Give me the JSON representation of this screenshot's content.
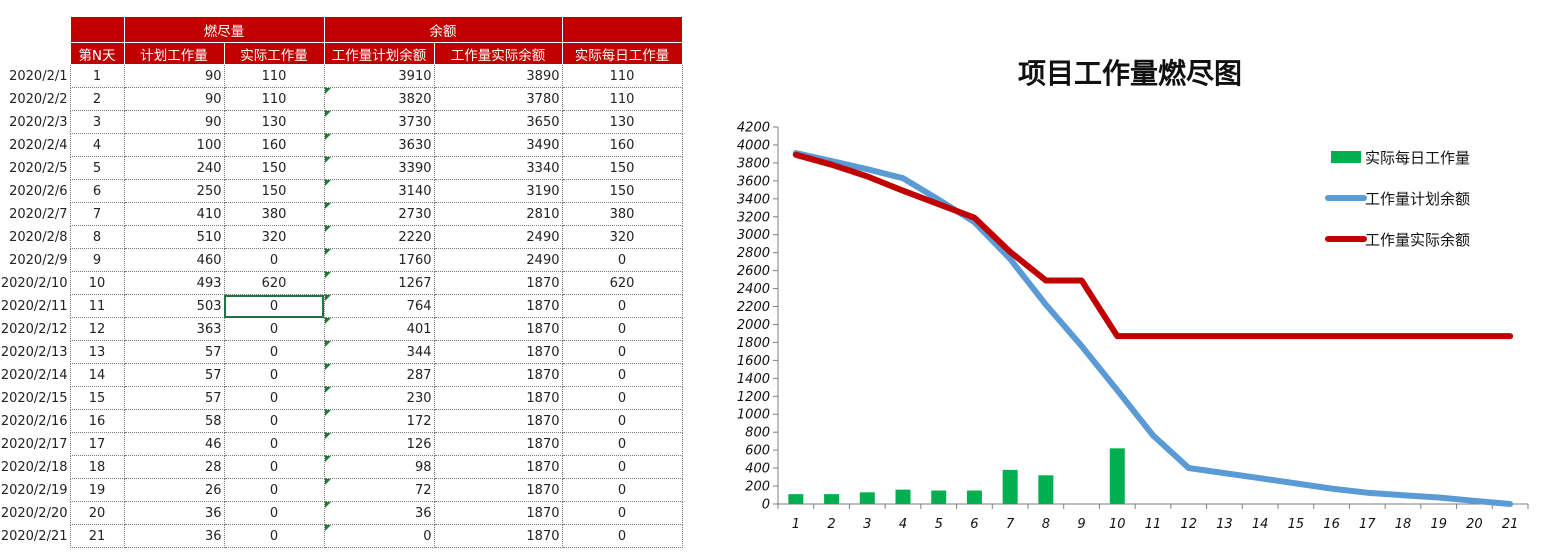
{
  "sheet": {
    "group_headers": {
      "burn": "燃尽量",
      "remain": "余额"
    },
    "columns": [
      "第N天",
      "计划工作量",
      "实际工作量",
      "工作量计划余额",
      "工作量实际余额",
      "实际每日工作量"
    ],
    "rows": [
      [
        "2020/2/1",
        "1",
        "90",
        "110",
        "3910",
        "3890",
        "110"
      ],
      [
        "2020/2/2",
        "2",
        "90",
        "110",
        "3820",
        "3780",
        "110"
      ],
      [
        "2020/2/3",
        "3",
        "90",
        "130",
        "3730",
        "3650",
        "130"
      ],
      [
        "2020/2/4",
        "4",
        "100",
        "160",
        "3630",
        "3490",
        "160"
      ],
      [
        "2020/2/5",
        "5",
        "240",
        "150",
        "3390",
        "3340",
        "150"
      ],
      [
        "2020/2/6",
        "6",
        "250",
        "150",
        "3140",
        "3190",
        "150"
      ],
      [
        "2020/2/7",
        "7",
        "410",
        "380",
        "2730",
        "2810",
        "380"
      ],
      [
        "2020/2/8",
        "8",
        "510",
        "320",
        "2220",
        "2490",
        "320"
      ],
      [
        "2020/2/9",
        "9",
        "460",
        "0",
        "1760",
        "2490",
        "0"
      ],
      [
        "2020/2/10",
        "10",
        "493",
        "620",
        "1267",
        "1870",
        "620"
      ],
      [
        "2020/2/11",
        "11",
        "503",
        "0",
        "764",
        "1870",
        "0"
      ],
      [
        "2020/2/12",
        "12",
        "363",
        "0",
        "401",
        "1870",
        "0"
      ],
      [
        "2020/2/13",
        "13",
        "57",
        "0",
        "344",
        "1870",
        "0"
      ],
      [
        "2020/2/14",
        "14",
        "57",
        "0",
        "287",
        "1870",
        "0"
      ],
      [
        "2020/2/15",
        "15",
        "57",
        "0",
        "230",
        "1870",
        "0"
      ],
      [
        "2020/2/16",
        "16",
        "58",
        "0",
        "172",
        "1870",
        "0"
      ],
      [
        "2020/2/17",
        "17",
        "46",
        "0",
        "126",
        "1870",
        "0"
      ],
      [
        "2020/2/18",
        "18",
        "28",
        "0",
        "98",
        "1870",
        "0"
      ],
      [
        "2020/2/19",
        "19",
        "26",
        "0",
        "72",
        "1870",
        "0"
      ],
      [
        "2020/2/20",
        "20",
        "36",
        "0",
        "36",
        "1870",
        "0"
      ],
      [
        "2020/2/21",
        "21",
        "36",
        "0",
        "0",
        "1870",
        "0"
      ]
    ]
  },
  "chart_data": {
    "type": "bar",
    "title": "项目工作量燃尽图",
    "categories": [
      "1",
      "2",
      "3",
      "4",
      "5",
      "6",
      "7",
      "8",
      "9",
      "10",
      "11",
      "12",
      "13",
      "14",
      "15",
      "16",
      "17",
      "18",
      "19",
      "20",
      "21"
    ],
    "series": [
      {
        "name": "实际每日工作量",
        "type": "bar",
        "color": "#00b050",
        "values": [
          110,
          110,
          130,
          160,
          150,
          150,
          380,
          320,
          0,
          620,
          0,
          0,
          0,
          0,
          0,
          0,
          0,
          0,
          0,
          0,
          0
        ]
      },
      {
        "name": "工作量计划余额",
        "type": "line",
        "color": "#5b9bd5",
        "values": [
          3910,
          3820,
          3730,
          3630,
          3390,
          3140,
          2730,
          2220,
          1760,
          1267,
          764,
          401,
          344,
          287,
          230,
          172,
          126,
          98,
          72,
          36,
          0
        ]
      },
      {
        "name": "工作量实际余额",
        "type": "line",
        "color": "#c00000",
        "values": [
          3890,
          3780,
          3650,
          3490,
          3340,
          3190,
          2810,
          2490,
          2490,
          1870,
          1870,
          1870,
          1870,
          1870,
          1870,
          1870,
          1870,
          1870,
          1870,
          1870,
          1870
        ]
      }
    ],
    "ylim": [
      0,
      4200
    ],
    "ytick_step": 200,
    "xlabel": "",
    "ylabel": "",
    "legend_position": "right",
    "grid": false
  }
}
